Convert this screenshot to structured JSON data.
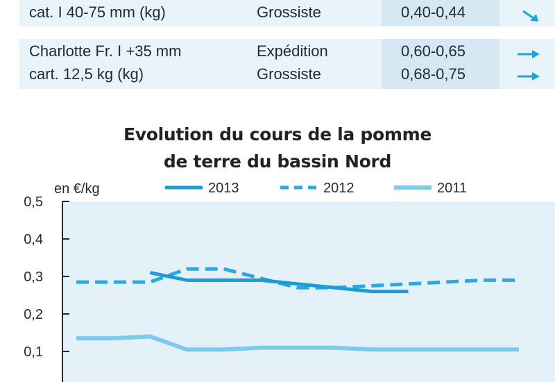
{
  "table": {
    "rows": [
      {
        "product_lines": [
          "cat. I 40-75 mm (kg)"
        ],
        "stages": [
          "Grossiste"
        ],
        "prices": [
          "0,40-0,44"
        ],
        "trends": [
          "arrow-down-right-icon"
        ]
      },
      {
        "product_lines": [
          "Charlotte Fr. I +35 mm",
          "cart. 12,5 kg (kg)"
        ],
        "stages": [
          "Expédition",
          "Grossiste"
        ],
        "prices": [
          "0,60-0,65",
          "0,68-0,75"
        ],
        "trends": [
          "arrow-right-icon",
          "arrow-right-icon"
        ]
      }
    ]
  },
  "colors": {
    "accent": "#1aa6dc",
    "series_2013": "#1b9bd7",
    "series_2012": "#2aa9e0",
    "series_2011": "#7ccaee",
    "plot_bg": "#e5f1f9",
    "row_bg": "#e9f3fa",
    "num_bg": "#d6e8f4"
  },
  "chart_data": {
    "type": "line",
    "title": "Evolution du cours de la pomme de terre du bassin Nord",
    "title_lines": [
      "Evolution du cours de la pomme",
      "de terre du bassin Nord"
    ],
    "ylabel": "en €/kg",
    "ylim": [
      0,
      0.5
    ],
    "yticks": [
      0.1,
      0.2,
      0.3,
      0.4,
      0.5
    ],
    "ytick_labels": [
      "0,1",
      "0,2",
      "0,3",
      "0,4",
      "0,5"
    ],
    "grid": false,
    "legend_position": "top",
    "x": [
      0,
      1,
      2,
      3,
      4,
      5,
      6,
      7,
      8,
      9,
      10,
      11,
      12
    ],
    "series": [
      {
        "name": "2013",
        "style": "solid",
        "values": [
          null,
          null,
          0.31,
          0.29,
          0.29,
          0.29,
          0.28,
          0.27,
          0.26,
          0.26,
          null,
          null,
          null
        ]
      },
      {
        "name": "2012",
        "style": "dashed",
        "values": [
          0.285,
          0.285,
          0.285,
          0.32,
          0.32,
          0.295,
          0.27,
          0.27,
          0.275,
          0.28,
          0.285,
          0.29,
          0.29
        ]
      },
      {
        "name": "2011",
        "style": "solid-light",
        "values": [
          0.135,
          0.135,
          0.14,
          0.105,
          0.105,
          0.11,
          0.11,
          0.11,
          0.105,
          0.105,
          0.105,
          0.105,
          0.105
        ]
      }
    ]
  }
}
